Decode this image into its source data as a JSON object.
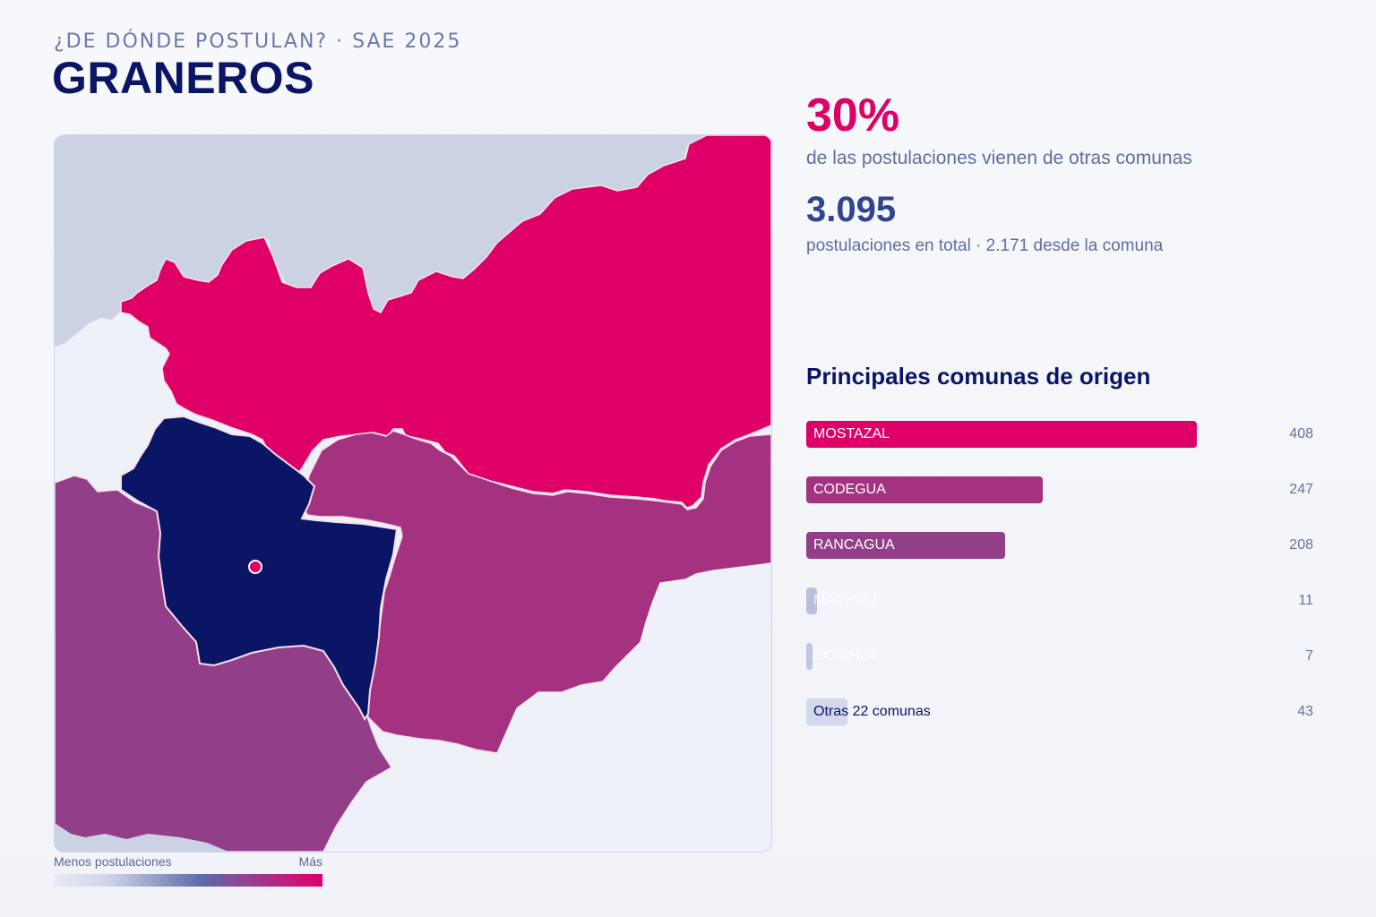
{
  "header": {
    "eyebrow": "¿DE DÓNDE POSTULAN? · SAE 2025",
    "title": "GRANEROS"
  },
  "stats": {
    "percent": "30%",
    "percent_label": "de las postulaciones vienen de otras comunas",
    "total": "3.095",
    "total_label": "postulaciones en total · 2.171 desde la comuna"
  },
  "origins": {
    "title": "Principales comunas de origen",
    "items": [
      {
        "label": "MOSTAZAL",
        "value": "408",
        "color": "#de0066"
      },
      {
        "label": "CODEGUA",
        "value": "247",
        "color": "#a43281"
      },
      {
        "label": "RANCAGUA",
        "value": "208",
        "color": "#933e88"
      },
      {
        "label": "MACHALÍ",
        "value": "11",
        "color": "#b8c1d9"
      },
      {
        "label": "DOÑIHUE",
        "value": "7",
        "color": "#bfc8df"
      },
      {
        "label": "Otras 22 comunas",
        "value": "43",
        "color": "#d3d9eb"
      }
    ]
  },
  "legend": {
    "low": "Menos postulaciones",
    "high": "Más"
  },
  "map": {
    "colors": {
      "background": "#eef1f7",
      "neutral": "#cbd2e4",
      "mostazal": "#de0066",
      "codegua": "#a43281",
      "rancagua": "#933e88",
      "graneros": "#0b1566",
      "marker": "#de0066",
      "border": "#f7dfe9"
    }
  }
}
